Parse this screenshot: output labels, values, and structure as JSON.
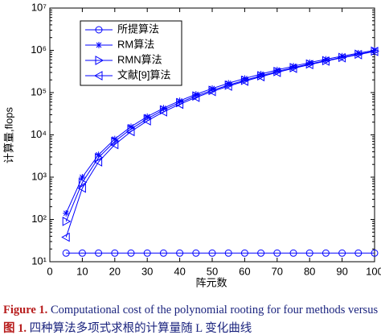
{
  "chart_data": {
    "type": "line",
    "x_label": "阵元数",
    "y_label": "计算量,flops",
    "x": [
      5,
      10,
      15,
      20,
      25,
      30,
      35,
      40,
      45,
      50,
      55,
      60,
      65,
      70,
      75,
      80,
      85,
      90,
      95,
      100
    ],
    "series": [
      {
        "name": "所提算法",
        "color": "#0000ff",
        "marker": "circle",
        "values": [
          16,
          16,
          16,
          16,
          16,
          16,
          16,
          16,
          16,
          16,
          16,
          16,
          16,
          16,
          16,
          16,
          16,
          16,
          16,
          16
        ]
      },
      {
        "name": "RM算法",
        "color": "#0000ff",
        "marker": "star",
        "values": [
          140,
          1000,
          3375,
          8000,
          15625,
          27000,
          42875,
          64000,
          91125,
          125000,
          166375,
          216000,
          274625,
          343000,
          421875,
          512000,
          614125,
          729000,
          857375,
          1000000
        ]
      },
      {
        "name": "RMN算法",
        "color": "#0000ff",
        "marker": "triangle-right",
        "values": [
          90,
          750,
          2900,
          7000,
          13800,
          24000,
          39000,
          58000,
          83000,
          113000,
          150000,
          195000,
          250000,
          315000,
          390000,
          475000,
          570000,
          680000,
          810000,
          960000
        ]
      },
      {
        "name": "文献[9]算法",
        "color": "#0000ff",
        "marker": "triangle-left",
        "values": [
          38,
          550,
          2300,
          5900,
          12000,
          21500,
          35000,
          53000,
          77000,
          106000,
          142000,
          186000,
          238000,
          300000,
          375000,
          460000,
          555000,
          665000,
          790000,
          940000
        ]
      }
    ],
    "xlim": [
      0,
      100
    ],
    "xticks": [
      0,
      10,
      20,
      30,
      40,
      50,
      60,
      70,
      80,
      90,
      100
    ],
    "ylim": [
      10,
      10000000
    ],
    "log_y": true,
    "yticks": [
      {
        "value": 10,
        "label": "10¹"
      },
      {
        "value": 100,
        "label": "10²"
      },
      {
        "value": 1000,
        "label": "10³"
      },
      {
        "value": 10000,
        "label": "10⁴"
      },
      {
        "value": 100000,
        "label": "10⁵"
      },
      {
        "value": 1000000,
        "label": "10⁶"
      },
      {
        "value": 10000000,
        "label": "10⁷"
      }
    ],
    "legend": "upper-left"
  },
  "caption": {
    "en_label": "Figure 1.",
    "en_text": "Computational cost of the polynomial rooting for four methods versus L",
    "zh_label": "图 1.",
    "zh_text": "四种算法多项式求根的计算量随 L 变化曲线"
  }
}
